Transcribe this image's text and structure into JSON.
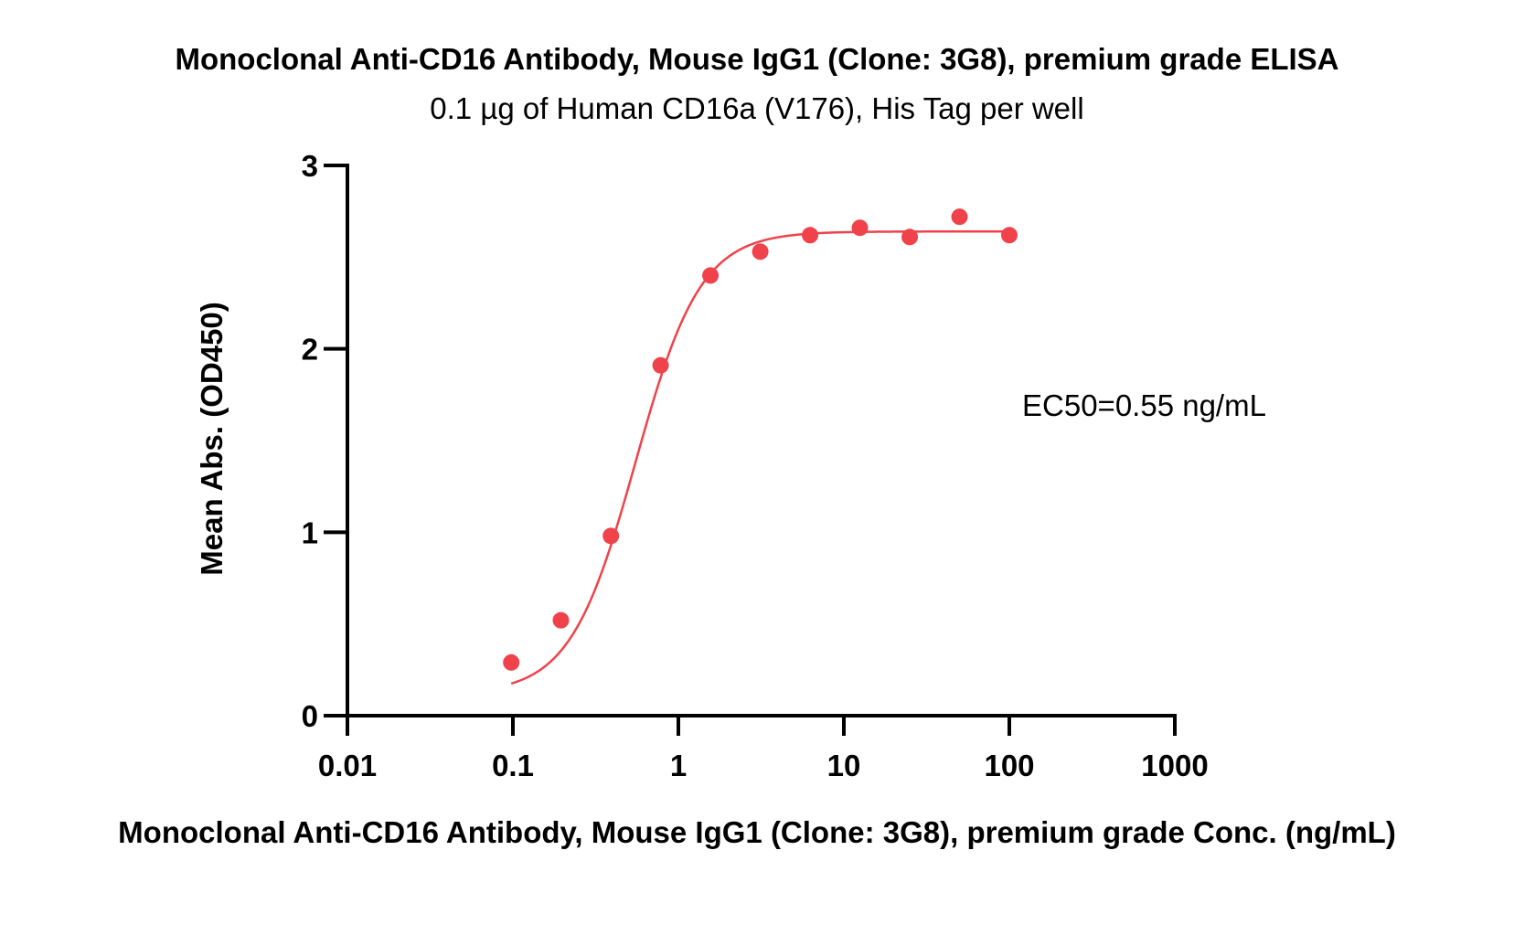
{
  "chart_data": {
    "type": "scatter",
    "title": "Monoclonal Anti-CD16 Antibody, Mouse IgG1 (Clone: 3G8), premium grade ELISA",
    "subtitle": "0.1 µg of Human CD16a (V176), His Tag per well",
    "xlabel": "Monoclonal Anti-CD16 Antibody, Mouse IgG1 (Clone: 3G8), premium grade Conc. (ng/mL)",
    "ylabel": "Mean Abs. (OD450)",
    "x_scale": "log",
    "xlim": [
      0.01,
      1000
    ],
    "ylim": [
      0,
      3
    ],
    "x_ticks": [
      0.01,
      0.1,
      1,
      10,
      100,
      1000
    ],
    "x_tick_labels": [
      "0.01",
      "0.1",
      "1",
      "10",
      "100",
      "1000"
    ],
    "y_ticks": [
      0,
      1,
      2,
      3
    ],
    "y_tick_labels": [
      "0",
      "1",
      "2",
      "3"
    ],
    "grid": false,
    "annotation": "EC50=0.55 ng/mL",
    "color": "#f0424a",
    "series": [
      {
        "x": [
          0.0977,
          0.195,
          0.391,
          0.781,
          1.5625,
          3.125,
          6.25,
          12.5,
          25,
          50,
          100
        ],
        "y": [
          0.29,
          0.52,
          0.98,
          1.91,
          2.4,
          2.53,
          2.62,
          2.66,
          2.61,
          2.72,
          2.62
        ]
      }
    ],
    "fit_curve": {
      "model": "4PL",
      "bottom": 0.12,
      "top": 2.64,
      "ec50": 0.55,
      "hill": 2.2
    }
  }
}
